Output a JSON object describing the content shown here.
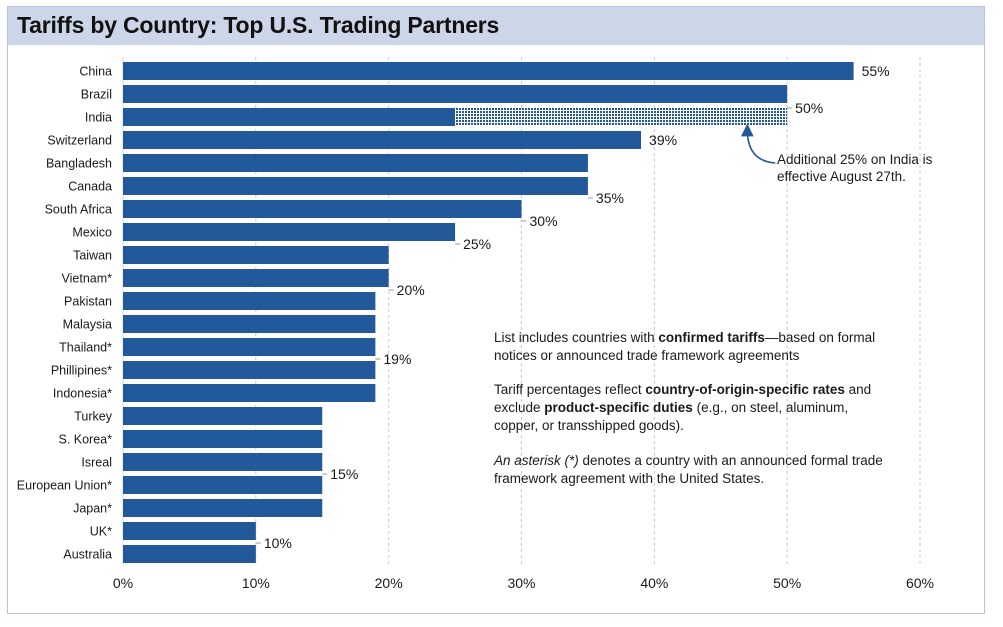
{
  "title": "Tariffs by Country: Top U.S. Trading Partners",
  "colors": {
    "bar": "#22599a",
    "title_bg": "#cdd5e8",
    "grid": "#c9c9c9",
    "text": "#1a1a1a"
  },
  "chart_data": {
    "type": "bar",
    "orientation": "horizontal",
    "categories": [
      "China",
      "Brazil",
      "India",
      "Switzerland",
      "Bangladesh",
      "Canada",
      "South Africa",
      "Mexico",
      "Taiwan",
      "Vietnam*",
      "Pakistan",
      "Malaysia",
      "Thailand*",
      "Phillipines*",
      "Indonesia*",
      "Turkey",
      "S. Korea*",
      "Isreal",
      "European Union*",
      "Japan*",
      "UK*",
      "Australia"
    ],
    "values": [
      55,
      50,
      50,
      39,
      35,
      35,
      30,
      25,
      20,
      20,
      19,
      19,
      19,
      19,
      19,
      15,
      15,
      15,
      15,
      15,
      10,
      10
    ],
    "india_split": {
      "base": 25,
      "additional": 25,
      "additional_pattern": "dotted"
    },
    "xlim": [
      0,
      60
    ],
    "x_ticks": [
      "0%",
      "10%",
      "20%",
      "30%",
      "40%",
      "50%",
      "60%"
    ],
    "grid": "vertical dashed",
    "data_labels": [
      {
        "text": "55%",
        "category": "China"
      },
      {
        "text": "50%",
        "category": "India"
      },
      {
        "text": "39%",
        "category": "Switzerland"
      },
      {
        "text": "35%",
        "category": "Canada"
      },
      {
        "text": "30%",
        "category": "South Africa"
      },
      {
        "text": "25%",
        "category": "Mexico"
      },
      {
        "text": "20%",
        "category": "Vietnam*"
      },
      {
        "text": "19%",
        "category": "Thailand*"
      },
      {
        "text": "15%",
        "category": "Isreal"
      },
      {
        "text": "10%",
        "category": "UK*"
      }
    ],
    "annotation": {
      "lines": [
        "Additional 25% on India  is",
        "effective August 27th."
      ]
    }
  },
  "notes": {
    "p1": {
      "t1": "List includes countries with ",
      "b1": "confirmed tariffs",
      "t2": "—based on formal notices or announced trade framework agreements"
    },
    "p2": {
      "t1": "Tariff percentages reflect ",
      "b1": "country-of-origin-specific rates",
      "t2": " and exclude ",
      "b2": "product-specific duties",
      "t3": " (e.g., on steel, aluminum, copper, or transshipped goods)."
    },
    "p3": {
      "i1": "An asterisk (*)",
      "t1": " denotes a country with an announced formal trade framework agreement with the United States."
    }
  }
}
